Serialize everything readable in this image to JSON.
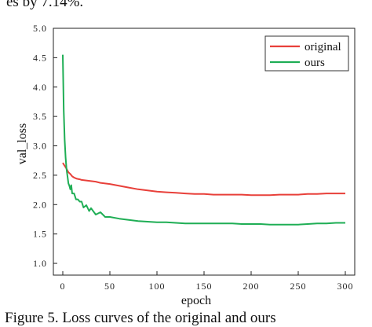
{
  "page": {
    "top_fragment": "es by 7.14%.",
    "bottom_fragment": "Figure 5. Loss curves of the original and ours"
  },
  "chart_data": {
    "type": "line",
    "title": "",
    "xlabel": "epoch",
    "ylabel": "val_loss",
    "xlim": [
      -10,
      310
    ],
    "ylim": [
      0.8,
      5.0
    ],
    "xticks": [
      0,
      50,
      100,
      150,
      200,
      250,
      300
    ],
    "yticks": [
      1.0,
      1.5,
      2.0,
      2.5,
      3.0,
      3.5,
      4.0,
      4.5,
      5.0
    ],
    "xtick_labels": [
      "0",
      "50",
      "100",
      "150",
      "200",
      "250",
      "300"
    ],
    "ytick_labels": [
      "1.0",
      "1.5",
      "2.0",
      "2.5",
      "3.0",
      "3.5",
      "4.0",
      "4.5",
      "5.0"
    ],
    "grid": false,
    "legend_position": "top-right",
    "series": [
      {
        "name": "original",
        "color": "#e8403a",
        "x": [
          0,
          2,
          4,
          6,
          8,
          10,
          12,
          15,
          18,
          20,
          25,
          30,
          35,
          40,
          50,
          60,
          70,
          80,
          90,
          100,
          110,
          120,
          130,
          140,
          150,
          160,
          170,
          180,
          190,
          200,
          210,
          220,
          230,
          240,
          250,
          260,
          270,
          280,
          290,
          300
        ],
        "y": [
          2.71,
          2.66,
          2.61,
          2.55,
          2.52,
          2.48,
          2.46,
          2.44,
          2.43,
          2.42,
          2.41,
          2.4,
          2.39,
          2.37,
          2.35,
          2.32,
          2.29,
          2.26,
          2.24,
          2.22,
          2.21,
          2.2,
          2.19,
          2.18,
          2.18,
          2.17,
          2.17,
          2.17,
          2.17,
          2.16,
          2.16,
          2.16,
          2.17,
          2.17,
          2.17,
          2.18,
          2.18,
          2.19,
          2.19,
          2.19
        ]
      },
      {
        "name": "ours",
        "color": "#1fae55",
        "x": [
          0,
          1,
          2,
          3,
          4,
          5,
          6,
          7,
          8,
          9,
          10,
          12,
          14,
          16,
          18,
          20,
          22,
          25,
          28,
          30,
          35,
          40,
          45,
          50,
          60,
          70,
          80,
          90,
          100,
          110,
          120,
          130,
          140,
          150,
          160,
          170,
          180,
          190,
          200,
          210,
          220,
          230,
          240,
          250,
          260,
          270,
          280,
          290,
          300
        ],
        "y": [
          4.55,
          3.6,
          3.1,
          2.8,
          2.6,
          2.48,
          2.36,
          2.32,
          2.26,
          2.3,
          2.22,
          2.16,
          2.12,
          2.06,
          2.08,
          2.02,
          1.98,
          1.96,
          1.92,
          1.91,
          1.86,
          1.84,
          1.82,
          1.79,
          1.76,
          1.74,
          1.72,
          1.71,
          1.7,
          1.7,
          1.69,
          1.68,
          1.68,
          1.68,
          1.68,
          1.68,
          1.68,
          1.67,
          1.67,
          1.67,
          1.66,
          1.66,
          1.66,
          1.66,
          1.67,
          1.68,
          1.68,
          1.69,
          1.69
        ]
      }
    ]
  }
}
